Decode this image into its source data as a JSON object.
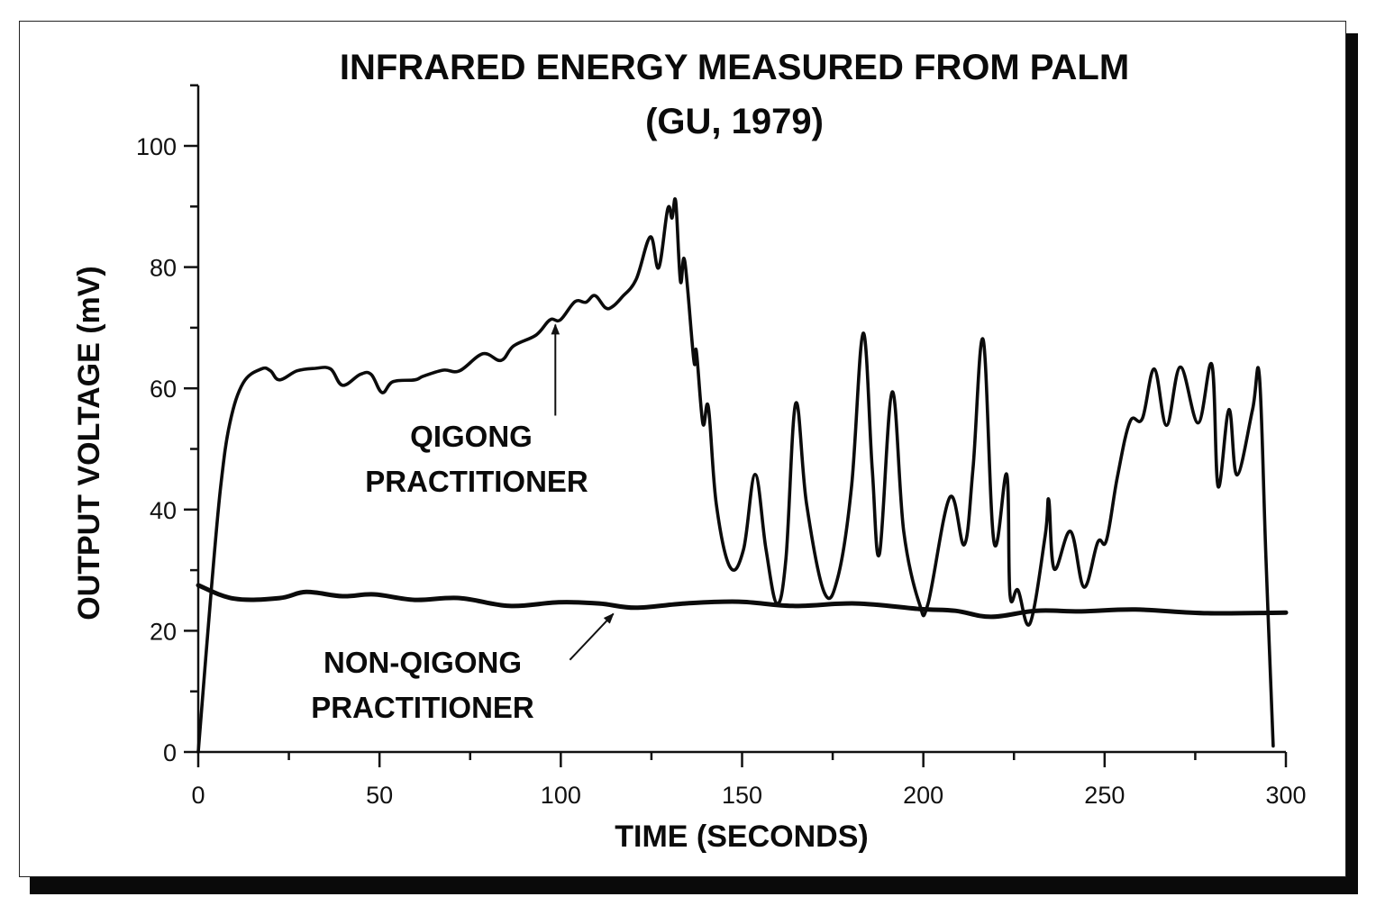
{
  "chart_data": {
    "type": "line",
    "title": "INFRARED ENERGY MEASURED FROM PALM",
    "subtitle": "(GU, 1979)",
    "xlabel": "TIME (SECONDS)",
    "ylabel": "OUTPUT VOLTAGE (mV)",
    "xlim": [
      0,
      300
    ],
    "ylim": [
      0,
      110
    ],
    "x_ticks": [
      0,
      50,
      100,
      150,
      200,
      250,
      300
    ],
    "x_tick_labels": [
      "0",
      "50",
      "100",
      "150",
      "200",
      "250",
      "300"
    ],
    "x_minor_ticks": [
      25,
      75,
      125,
      175,
      225,
      275
    ],
    "y_ticks": [
      0,
      20,
      40,
      60,
      80,
      100
    ],
    "y_tick_labels": [
      "0",
      "20",
      "40",
      "60",
      "80",
      "100"
    ],
    "y_minor_ticks": [
      10,
      30,
      50,
      70,
      90,
      110
    ],
    "grid": false,
    "legend": "none (inline annotations)",
    "series": [
      {
        "name": "QIGONG PRACTITIONER",
        "color": "#0b0b0b",
        "points": [
          [
            0,
            0
          ],
          [
            3.7,
            27.5
          ],
          [
            6.2,
            43.8
          ],
          [
            8.7,
            54.2
          ],
          [
            12.4,
            60.9
          ],
          [
            17.4,
            63.2
          ],
          [
            19.9,
            62.9
          ],
          [
            22.4,
            61.4
          ],
          [
            27.3,
            62.9
          ],
          [
            32.3,
            63.3
          ],
          [
            36.5,
            63.2
          ],
          [
            39.8,
            60.5
          ],
          [
            44.7,
            62.3
          ],
          [
            47.7,
            62.3
          ],
          [
            50.7,
            59.3
          ],
          [
            53.7,
            61.1
          ],
          [
            59.7,
            61.4
          ],
          [
            62.1,
            62.0
          ],
          [
            67.6,
            63.0
          ],
          [
            72.1,
            62.9
          ],
          [
            78.5,
            65.7
          ],
          [
            83.5,
            64.6
          ],
          [
            87.0,
            67.0
          ],
          [
            93.2,
            68.8
          ],
          [
            97.0,
            71.3
          ],
          [
            99.9,
            71.3
          ],
          [
            103.9,
            74.3
          ],
          [
            106.9,
            74.2
          ],
          [
            109.4,
            75.3
          ],
          [
            112.3,
            73.3
          ],
          [
            114.3,
            73.5
          ],
          [
            116.8,
            75.0
          ],
          [
            120.8,
            78.0
          ],
          [
            124.7,
            85.0
          ],
          [
            127.0,
            79.9
          ],
          [
            129.5,
            89.6
          ],
          [
            130.7,
            88.1
          ],
          [
            131.7,
            90.8
          ],
          [
            133.0,
            77.7
          ],
          [
            134.2,
            81.0
          ],
          [
            136.7,
            64.6
          ],
          [
            137.4,
            66.1
          ],
          [
            139.2,
            54.2
          ],
          [
            140.7,
            56.9
          ],
          [
            142.9,
            40.9
          ],
          [
            146.7,
            30.5
          ],
          [
            150.4,
            33.4
          ],
          [
            153.6,
            45.8
          ],
          [
            156.6,
            33.4
          ],
          [
            159.6,
            24.5
          ],
          [
            162.1,
            31.9
          ],
          [
            164.8,
            57.5
          ],
          [
            167.8,
            40.9
          ],
          [
            172.7,
            26.3
          ],
          [
            176.5,
            29.0
          ],
          [
            180.2,
            43.8
          ],
          [
            183.4,
            69.1
          ],
          [
            185.9,
            46.8
          ],
          [
            187.9,
            32.7
          ],
          [
            191.4,
            59.4
          ],
          [
            194.6,
            36.4
          ],
          [
            198.9,
            24.5
          ],
          [
            201.3,
            24.5
          ],
          [
            207.3,
            42.0
          ],
          [
            211.3,
            34.2
          ],
          [
            213.7,
            46.8
          ],
          [
            216.5,
            68.0
          ],
          [
            219.5,
            34.6
          ],
          [
            223.0,
            45.8
          ],
          [
            223.9,
            26.0
          ],
          [
            226.1,
            26.7
          ],
          [
            229.4,
            21.2
          ],
          [
            233.6,
            35.7
          ],
          [
            234.6,
            41.6
          ],
          [
            236.1,
            30.2
          ],
          [
            240.6,
            36.4
          ],
          [
            244.3,
            27.2
          ],
          [
            248.1,
            34.6
          ],
          [
            250.5,
            34.9
          ],
          [
            253.5,
            45.3
          ],
          [
            257.0,
            54.5
          ],
          [
            260.4,
            55.0
          ],
          [
            263.7,
            63.2
          ],
          [
            267.1,
            53.9
          ],
          [
            270.9,
            63.5
          ],
          [
            275.8,
            54.3
          ],
          [
            279.6,
            63.9
          ],
          [
            281.3,
            43.8
          ],
          [
            284.3,
            56.5
          ],
          [
            286.5,
            45.7
          ],
          [
            290.8,
            56.5
          ],
          [
            292.7,
            62.0
          ],
          [
            294.5,
            31.9
          ],
          [
            296.5,
            1.0
          ]
        ]
      },
      {
        "name": "NON-QIGONG PRACTITIONER",
        "color": "#0b0b0b",
        "points": [
          [
            0,
            27.5
          ],
          [
            9.9,
            25.3
          ],
          [
            22.4,
            25.4
          ],
          [
            29.8,
            26.4
          ],
          [
            39.8,
            25.7
          ],
          [
            48.5,
            26.0
          ],
          [
            59.7,
            25.1
          ],
          [
            72.1,
            25.4
          ],
          [
            85.8,
            24.1
          ],
          [
            99.4,
            24.7
          ],
          [
            110.6,
            24.5
          ],
          [
            120.6,
            23.8
          ],
          [
            134.2,
            24.5
          ],
          [
            149.1,
            24.8
          ],
          [
            164.0,
            24.1
          ],
          [
            181.4,
            24.5
          ],
          [
            198.9,
            23.6
          ],
          [
            208.8,
            23.3
          ],
          [
            218.7,
            22.3
          ],
          [
            231.1,
            23.3
          ],
          [
            243.6,
            23.2
          ],
          [
            258.5,
            23.5
          ],
          [
            278.4,
            22.9
          ],
          [
            300,
            23.0
          ]
        ]
      }
    ],
    "annotations": [
      {
        "name": "qigong-label",
        "lines": [
          "QIGONG",
          "PRACTITIONER"
        ],
        "arrow_points_to": [
          98.5,
          70.5
        ],
        "arrow_from": [
          98.5,
          55.5
        ]
      },
      {
        "name": "non-qigong-label",
        "lines": [
          "NON-QIGONG",
          "PRACTITIONER"
        ],
        "arrow_points_to": [
          114.5,
          22.8
        ],
        "arrow_from": [
          102.5,
          15.2
        ]
      }
    ]
  }
}
